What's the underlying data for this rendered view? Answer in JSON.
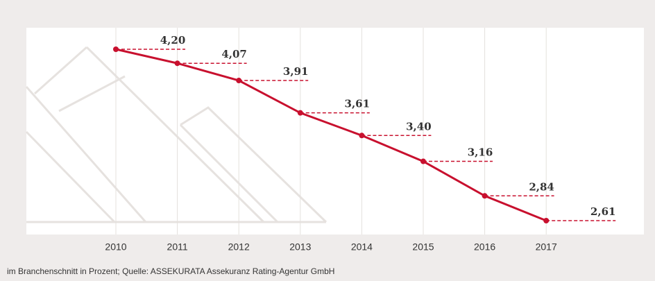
{
  "chart_data": {
    "type": "line",
    "categories": [
      "2010",
      "2011",
      "2012",
      "2013",
      "2014",
      "2015",
      "2016",
      "2017"
    ],
    "values": [
      4.2,
      4.07,
      3.91,
      3.61,
      3.4,
      3.16,
      2.84,
      2.61
    ],
    "value_labels": [
      "4,20",
      "4,07",
      "3,91",
      "3,61",
      "3,40",
      "3,16",
      "2,84",
      "2,61"
    ],
    "color": "#c8102e",
    "grid": true,
    "footnote": "im Branchenschnitt in Prozent; Quelle: ASSEKURATA Assekuranz Rating-Agentur GmbH"
  }
}
